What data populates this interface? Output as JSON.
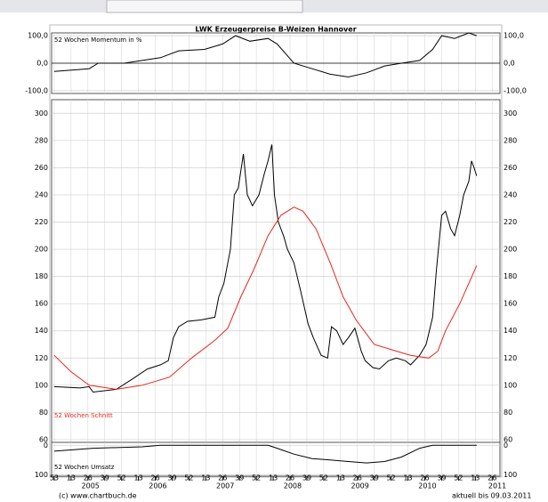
{
  "chart_data": [
    {
      "type": "line",
      "title": "LWK Erzeugerpreise B-Weizen Hannover",
      "xlim": [
        -2,
        344
      ],
      "ylim": [
        -110,
        110
      ],
      "yticks": [
        {
          "value": 100,
          "label": "100,0"
        },
        {
          "value": 0,
          "label": "0,0"
        },
        {
          "value": -100,
          "label": "-100,0"
        }
      ],
      "grid": true,
      "series": [
        {
          "name": "52 Wochen Momentum in %",
          "color": "#000000",
          "x": [
            0,
            27,
            34,
            54,
            68,
            82,
            96,
            116,
            130,
            140,
            151,
            165,
            172,
            185,
            199,
            213,
            227,
            241,
            255,
            268,
            282,
            292,
            299,
            309,
            320,
            326
          ],
          "values": [
            -30,
            -20,
            0,
            0,
            10,
            20,
            45,
            50,
            70,
            100,
            80,
            90,
            70,
            0,
            -20,
            -40,
            -50,
            -35,
            -10,
            0,
            10,
            50,
            100,
            90,
            110,
            100
          ]
        }
      ]
    },
    {
      "type": "line",
      "xlim": [
        -2,
        344
      ],
      "ylim": [
        58,
        310
      ],
      "yticks": [
        60,
        80,
        100,
        120,
        140,
        160,
        180,
        200,
        220,
        240,
        260,
        280,
        300
      ],
      "grid": true,
      "series": [
        {
          "color": "#000000",
          "x": [
            0,
            20,
            27,
            30,
            48,
            61,
            72,
            82,
            88,
            92,
            96,
            103,
            113,
            124,
            127,
            131,
            136,
            139,
            142,
            146,
            149,
            153,
            158,
            162,
            165,
            168,
            170,
            173,
            177,
            180,
            185,
            190,
            196,
            200,
            206,
            211,
            214,
            218,
            223,
            227,
            232,
            237,
            240,
            246,
            251,
            258,
            264,
            271,
            275,
            282,
            287,
            292,
            295,
            299,
            302,
            306,
            309,
            313,
            316,
            320,
            322,
            324,
            326
          ],
          "values": [
            99,
            98,
            99,
            95,
            97,
            105,
            112,
            115,
            118,
            135,
            143,
            147,
            148,
            150,
            165,
            175,
            200,
            240,
            245,
            270,
            240,
            232,
            240,
            255,
            265,
            277,
            240,
            220,
            210,
            200,
            190,
            170,
            145,
            135,
            122,
            120,
            143,
            140,
            130,
            135,
            142,
            125,
            118,
            113,
            112,
            118,
            120,
            118,
            115,
            122,
            130,
            150,
            185,
            225,
            228,
            215,
            210,
            225,
            240,
            250,
            265,
            260,
            254
          ]
        },
        {
          "name": "52 Wochen Schnitt",
          "color": "#e8261c",
          "x": [
            0,
            13,
            27,
            48,
            68,
            89,
            106,
            124,
            134,
            144,
            154,
            165,
            175,
            185,
            192,
            202,
            213,
            223,
            233,
            247,
            261,
            275,
            289,
            296,
            302,
            313,
            320,
            326
          ],
          "values": [
            122,
            110,
            100,
            97,
            100,
            106,
            120,
            133,
            142,
            165,
            185,
            210,
            225,
            231,
            228,
            215,
            190,
            165,
            148,
            130,
            126,
            122,
            120,
            125,
            140,
            160,
            175,
            188
          ]
        }
      ]
    },
    {
      "type": "line",
      "xlim": [
        -2,
        344
      ],
      "ylim": [
        105,
        -10
      ],
      "yticks": [
        0,
        100
      ],
      "grid": true,
      "series": [
        {
          "name": "52 Wochen Umsatz",
          "color": "#000000",
          "x": [
            0,
            30,
            68,
            82,
            103,
            140,
            165,
            172,
            185,
            199,
            213,
            227,
            241,
            255,
            268,
            282,
            292,
            309,
            326
          ],
          "values": [
            20,
            10,
            5,
            0,
            0,
            0,
            0,
            10,
            30,
            45,
            50,
            55,
            60,
            55,
            40,
            10,
            0,
            0,
            0
          ]
        }
      ],
      "xticks": [
        {
          "value": 0,
          "label": "53"
        },
        13,
        26,
        39,
        52,
        {
          "value": 65,
          "label": "13"
        },
        {
          "value": 78,
          "label": "26"
        },
        {
          "value": 91,
          "label": "39"
        },
        {
          "value": 104,
          "label": "52"
        },
        {
          "value": 117,
          "label": "13"
        },
        {
          "value": 130,
          "label": "26"
        },
        {
          "value": 143,
          "label": "39"
        },
        {
          "value": 156,
          "label": "52"
        },
        {
          "value": 169,
          "label": "13"
        },
        {
          "value": 182,
          "label": "26"
        },
        {
          "value": 195,
          "label": "39"
        },
        {
          "value": 208,
          "label": "52"
        },
        {
          "value": 221,
          "label": "13"
        },
        {
          "value": 234,
          "label": "26"
        },
        {
          "value": 247,
          "label": "39"
        },
        {
          "value": 260,
          "label": "52"
        },
        {
          "value": 273,
          "label": "13"
        },
        {
          "value": 286,
          "label": "26"
        },
        {
          "value": 299,
          "label": "39"
        },
        {
          "value": 312,
          "label": "52"
        },
        {
          "value": 325,
          "label": "13"
        },
        {
          "value": 338,
          "label": "26"
        }
      ],
      "year_ticks": [
        {
          "value": 28,
          "label": "2005"
        },
        {
          "value": 80,
          "label": "2006"
        },
        {
          "value": 132,
          "label": "2007"
        },
        {
          "value": 184,
          "label": "2008"
        },
        {
          "value": 236,
          "label": "2009"
        },
        {
          "value": 288,
          "label": "2010"
        },
        {
          "value": 342,
          "label": "2011"
        }
      ]
    }
  ],
  "footer": {
    "source": "(c) www.chartbuch.de",
    "updated": "aktuell bis 09.03.2011"
  }
}
